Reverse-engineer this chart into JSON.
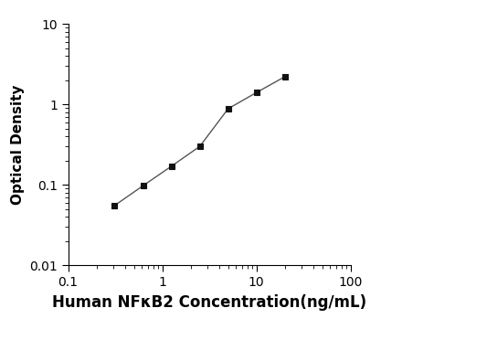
{
  "x": [
    0.31,
    0.63,
    1.25,
    2.5,
    5.0,
    10.0,
    20.0
  ],
  "y": [
    0.055,
    0.098,
    0.17,
    0.3,
    0.88,
    1.4,
    2.2
  ],
  "xlim": [
    0.1,
    100
  ],
  "ylim": [
    0.01,
    10
  ],
  "xlabel": "Human NFκB2 Concentration(ng/mL)",
  "ylabel": "Optical Density",
  "line_color": "#555555",
  "marker": "s",
  "marker_color": "#111111",
  "marker_size": 5,
  "line_width": 1.0,
  "bg_color": "#ffffff",
  "xticks": [
    0.1,
    1,
    10,
    100
  ],
  "yticks": [
    0.01,
    0.1,
    1,
    10
  ],
  "xlabel_fontsize": 12,
  "ylabel_fontsize": 11,
  "tick_fontsize": 10
}
